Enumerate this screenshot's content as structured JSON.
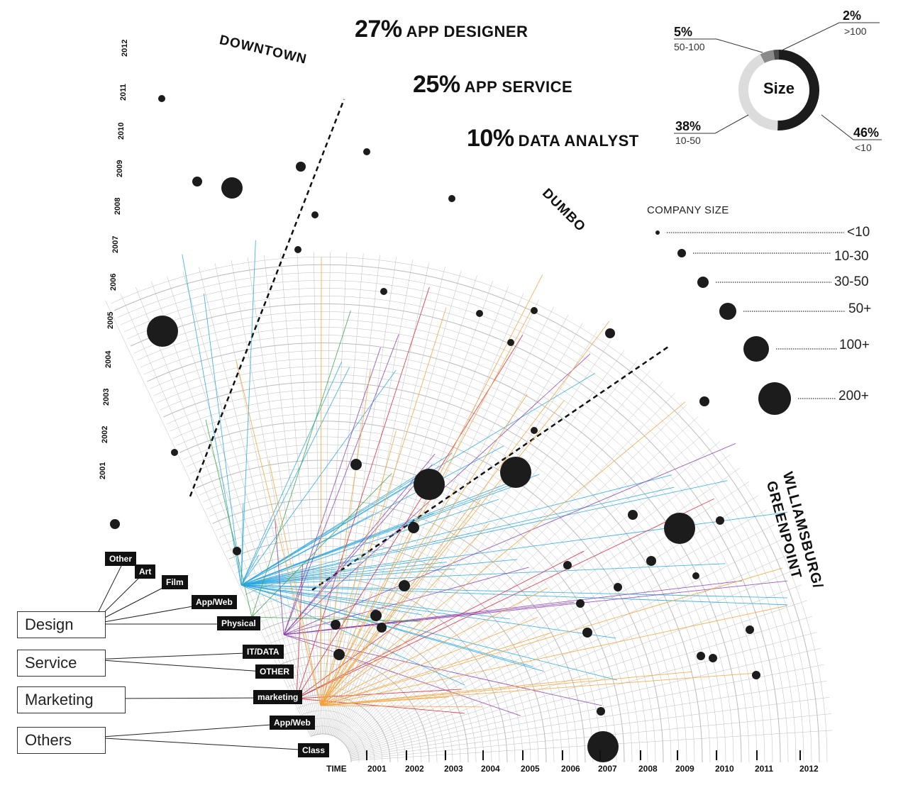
{
  "headlines": [
    {
      "pct": "27%",
      "role": "APP DESIGNER"
    },
    {
      "pct": "25%",
      "role": "APP SERVICE"
    },
    {
      "pct": "10%",
      "role": "DATA ANALYST"
    }
  ],
  "districts": {
    "downtown": "DOWNTOWN",
    "dumbo": "DUMBO",
    "williamsburg_line1": "WLLIAMSBURG/",
    "williamsburg_line2": "GREENPOINT"
  },
  "size_donut": {
    "center_label": "Size",
    "segments": [
      {
        "pct": "46%",
        "range": "<10",
        "value": 46,
        "color": "#1c1c1c"
      },
      {
        "pct": "38%",
        "range": "10-50",
        "value": 38,
        "color": "#dcdcdc"
      },
      {
        "pct": "5%",
        "range": "50-100",
        "value": 5,
        "color": "#8a8a8a"
      },
      {
        "pct": "2%",
        "range": ">100",
        "value": 2,
        "color": "#4a4a4a"
      }
    ]
  },
  "company_size_legend": {
    "title": "COMPANY SIZE",
    "items": [
      {
        "label": "<10",
        "size_rank": 1
      },
      {
        "label": "10-30",
        "size_rank": 2
      },
      {
        "label": "30-50",
        "size_rank": 3
      },
      {
        "label": "50+",
        "size_rank": 4
      },
      {
        "label": "100+",
        "size_rank": 5
      },
      {
        "label": "200+",
        "size_rank": 6
      }
    ]
  },
  "categories": [
    "Design",
    "Service",
    "Marketing",
    "Others"
  ],
  "tags": [
    "Other",
    "Art",
    "Film",
    "App/Web",
    "Physical",
    "IT/DATA",
    "OTHER",
    "marketing",
    "App/Web",
    "Class"
  ],
  "time_axis": {
    "label": "TIME",
    "years": [
      "2001",
      "2002",
      "2003",
      "2004",
      "2005",
      "2006",
      "2007",
      "2008",
      "2009",
      "2010",
      "2011",
      "2012"
    ]
  },
  "vertical_years": [
    "2012",
    "2011",
    "2010",
    "2009",
    "2008",
    "2007",
    "2006",
    "2005",
    "2004",
    "2003",
    "2002",
    "2001"
  ],
  "colors": {
    "design_link": "#2aa7e0",
    "service_link": "#8a3fb0",
    "marketing_link": "#d4283a",
    "others_link": "#f2a33a",
    "physical_link": "#3aa64a",
    "grid": "#bcbcbc"
  }
}
